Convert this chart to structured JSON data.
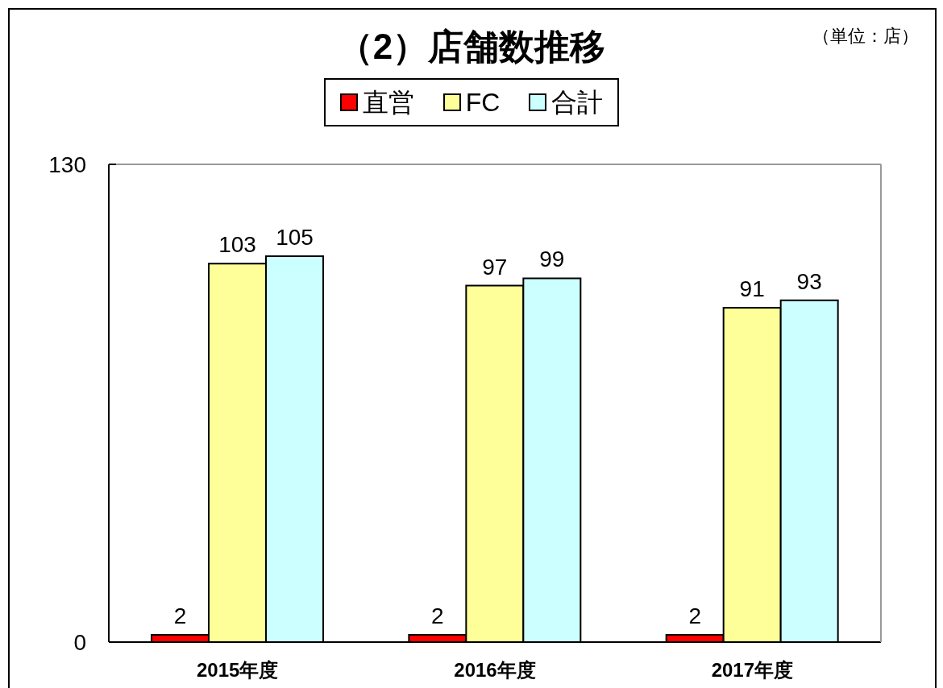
{
  "chart_data": {
    "type": "bar",
    "title": "（2）店舗数推移",
    "annotations": [
      "（単位：店）"
    ],
    "categories": [
      "2015年度",
      "2016年度",
      "2017年度"
    ],
    "series": [
      {
        "name": "直営",
        "color": "#ff0000",
        "values": [
          2,
          2,
          2
        ]
      },
      {
        "name": "FC",
        "color": "#ffff99",
        "values": [
          103,
          97,
          91
        ]
      },
      {
        "name": "合計",
        "color": "#ccffff",
        "values": [
          105,
          99,
          93
        ]
      }
    ],
    "ylim": [
      0,
      130
    ],
    "yticks": [
      0,
      130
    ],
    "data_labels": true,
    "legend": "top"
  }
}
